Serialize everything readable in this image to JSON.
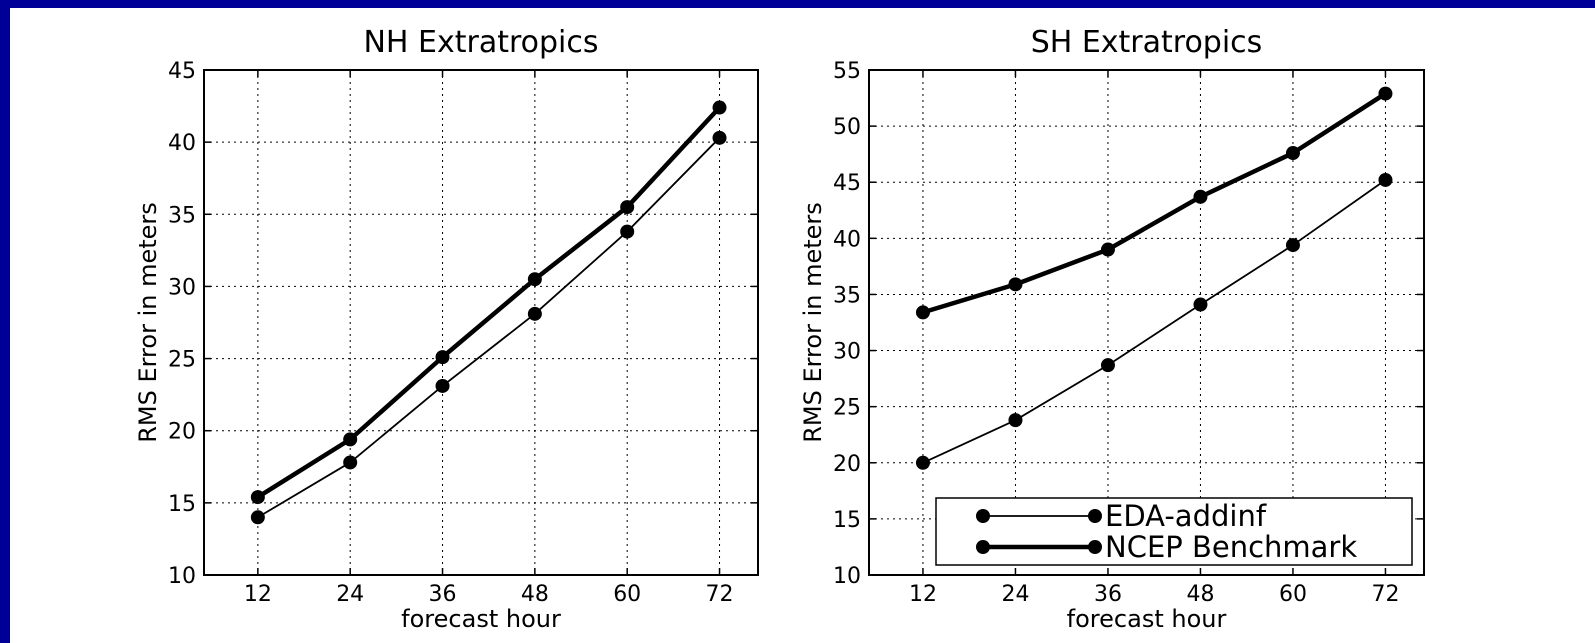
{
  "chart_data": [
    {
      "type": "line",
      "title": "NH Extratropics",
      "xlabel": "forecast hour",
      "ylabel": "RMS Error in meters",
      "x": [
        12,
        24,
        36,
        48,
        60,
        72
      ],
      "xlim": [
        5,
        77
      ],
      "ylim": [
        10,
        45
      ],
      "yticks": [
        10,
        15,
        20,
        25,
        30,
        35,
        40,
        45
      ],
      "grid": true,
      "series": [
        {
          "name": "EDA-addinf",
          "values": [
            14.0,
            17.8,
            23.1,
            28.1,
            33.8,
            40.3
          ]
        },
        {
          "name": "NCEP Benchmark",
          "values": [
            15.4,
            19.4,
            25.1,
            30.5,
            35.5,
            42.4
          ]
        }
      ]
    },
    {
      "type": "line",
      "title": "SH Extratropics",
      "xlabel": "forecast hour",
      "ylabel": "RMS Error in meters",
      "x": [
        12,
        24,
        36,
        48,
        60,
        72
      ],
      "xlim": [
        5,
        77
      ],
      "ylim": [
        10,
        55
      ],
      "yticks": [
        10,
        15,
        20,
        25,
        30,
        35,
        40,
        45,
        50,
        55
      ],
      "grid": true,
      "legend": "lower right",
      "series": [
        {
          "name": "EDA-addinf",
          "values": [
            20.0,
            23.8,
            28.7,
            34.1,
            39.4,
            45.2
          ]
        },
        {
          "name": "NCEP Benchmark",
          "values": [
            33.4,
            35.9,
            39.0,
            43.7,
            47.6,
            52.9
          ]
        }
      ]
    }
  ]
}
